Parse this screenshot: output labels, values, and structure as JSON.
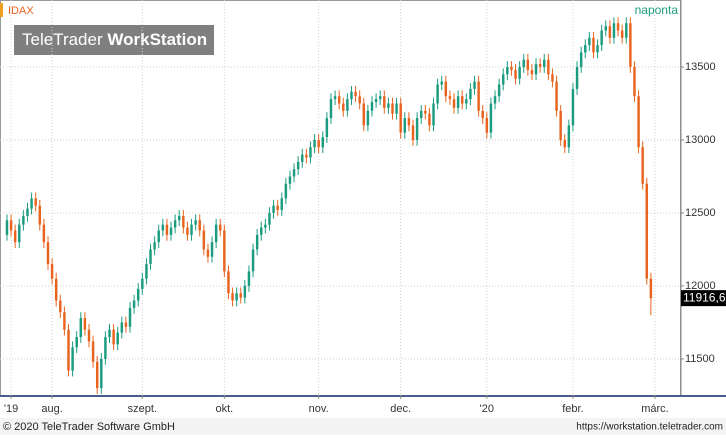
{
  "chart_data": {
    "type": "candlestick",
    "symbol": "IDAX",
    "period": "naponta",
    "watermark_a": "TeleTrader",
    "watermark_b": "WorkStation",
    "footer_left": "© 2020 TeleTrader Software GmbH",
    "footer_right": "https://workstation.teletrader.com",
    "up_color": "#1b9c80",
    "down_color": "#e8641e",
    "grid": true,
    "ylim": [
      11253,
      13959
    ],
    "yticks": [
      11500,
      12000,
      12500,
      13000,
      13500
    ],
    "xlim": [
      -1.7,
      164.1
    ],
    "xticks": [
      {
        "value": 1,
        "label": "'19"
      },
      {
        "value": 11,
        "label": "aug."
      },
      {
        "value": 33,
        "label": "szept."
      },
      {
        "value": 53,
        "label": "okt."
      },
      {
        "value": 76,
        "label": "nov."
      },
      {
        "value": 96,
        "label": "dec."
      },
      {
        "value": 117,
        "label": "'20"
      },
      {
        "value": 138,
        "label": "febr."
      },
      {
        "value": 158,
        "label": "márc."
      }
    ],
    "last_label": "11916,6",
    "open": [
      12350,
      12450,
      12380,
      12300,
      12420,
      12480,
      12530,
      12600,
      12550,
      12420,
      12300,
      12150,
      12050,
      11900,
      11820,
      11700,
      11420,
      11580,
      11650,
      11780,
      11700,
      11620,
      11480,
      11300,
      11500,
      11650,
      11700,
      11600,
      11680,
      11750,
      11720,
      11850,
      11900,
      11980,
      12050,
      12150,
      12250,
      12300,
      12380,
      12420,
      12350,
      12400,
      12450,
      12480,
      12400,
      12350,
      12420,
      12450,
      12380,
      12250,
      12200,
      12300,
      12420,
      12380,
      12100,
      11950,
      11900,
      11950,
      11920,
      12000,
      12100,
      12250,
      12350,
      12400,
      12420,
      12500,
      12550,
      12520,
      12600,
      12700,
      12750,
      12800,
      12850,
      12900,
      12880,
      12950,
      13000,
      12950,
      13020,
      13150,
      13280,
      13300,
      13250,
      13200,
      13280,
      13330,
      13300,
      13250,
      13100,
      13200,
      13260,
      13280,
      13300,
      13220,
      13250,
      13180,
      13250,
      13050,
      13150,
      13100,
      13000,
      13150,
      13200,
      13180,
      13100,
      13250,
      13380,
      13400,
      13300,
      13280,
      13220,
      13300,
      13250,
      13280,
      13350,
      13400,
      13200,
      13150,
      13050,
      13250,
      13300,
      13380,
      13450,
      13500,
      13480,
      13420,
      13500,
      13550,
      13480,
      13450,
      13520,
      13500,
      13550,
      13450,
      13400,
      13200,
      13000,
      12950,
      13100,
      13350,
      13500,
      13600,
      13650,
      13700,
      13600,
      13650,
      13750,
      13780,
      13700,
      13800,
      13750,
      13700,
      13800,
      13500,
      13300,
      12950,
      12700,
      12050
    ],
    "high": [
      12490,
      12490,
      12420,
      12460,
      12520,
      12570,
      12640,
      12640,
      12590,
      12460,
      12340,
      12190,
      12090,
      11940,
      11860,
      11740,
      11620,
      11690,
      11820,
      11820,
      11740,
      11660,
      11520,
      11540,
      11690,
      11740,
      11740,
      11720,
      11790,
      11790,
      11890,
      11940,
      12020,
      12090,
      12190,
      12290,
      12340,
      12420,
      12460,
      12460,
      12440,
      12490,
      12520,
      12520,
      12440,
      12460,
      12490,
      12490,
      12420,
      12290,
      12340,
      12460,
      12460,
      12420,
      12140,
      11990,
      11990,
      11990,
      12040,
      12140,
      12290,
      12390,
      12440,
      12460,
      12540,
      12590,
      12590,
      12640,
      12740,
      12790,
      12840,
      12890,
      12940,
      12940,
      12990,
      13040,
      13040,
      13060,
      13190,
      13320,
      13340,
      13340,
      13290,
      13320,
      13370,
      13370,
      13340,
      13290,
      13240,
      13300,
      13320,
      13340,
      13340,
      13290,
      13290,
      13290,
      13290,
      13190,
      13190,
      13140,
      13190,
      13240,
      13240,
      13220,
      13290,
      13420,
      13440,
      13440,
      13340,
      13320,
      13340,
      13340,
      13320,
      13390,
      13440,
      13440,
      13240,
      13190,
      13290,
      13340,
      13420,
      13490,
      13540,
      13540,
      13520,
      13540,
      13590,
      13590,
      13520,
      13560,
      13560,
      13590,
      13590,
      13490,
      13440,
      13240,
      13040,
      13140,
      13390,
      13540,
      13640,
      13690,
      13740,
      13740,
      13690,
      13790,
      13820,
      13820,
      13840,
      13840,
      13790,
      13840,
      13840,
      13540,
      13340,
      12990,
      12740,
      12090
    ],
    "low": [
      12310,
      12340,
      12260,
      12260,
      12380,
      12440,
      12490,
      12510,
      12380,
      12260,
      12110,
      12010,
      11860,
      11780,
      11660,
      11380,
      11380,
      11540,
      11610,
      11660,
      11580,
      11440,
      11260,
      11260,
      11460,
      11610,
      11560,
      11560,
      11640,
      11680,
      11680,
      11810,
      11860,
      11940,
      12010,
      12110,
      12210,
      12260,
      12340,
      12310,
      12310,
      12360,
      12410,
      12360,
      12310,
      12310,
      12380,
      12340,
      12210,
      12160,
      12160,
      12260,
      12340,
      12060,
      11910,
      11860,
      11860,
      11880,
      11880,
      11960,
      12060,
      12210,
      12310,
      12360,
      12380,
      12460,
      12480,
      12480,
      12560,
      12660,
      12710,
      12760,
      12810,
      12840,
      12840,
      12910,
      12910,
      12910,
      12980,
      13110,
      13240,
      13210,
      13160,
      13160,
      13240,
      13260,
      13210,
      13060,
      13060,
      13160,
      13220,
      13240,
      13180,
      13180,
      13140,
      13140,
      13010,
      13010,
      13060,
      12960,
      12960,
      13110,
      13140,
      13060,
      13060,
      13210,
      13340,
      13260,
      13240,
      13180,
      13180,
      13210,
      13210,
      13240,
      13310,
      13160,
      13110,
      13010,
      13010,
      13210,
      13260,
      13340,
      13410,
      13440,
      13380,
      13380,
      13460,
      13440,
      13410,
      13410,
      13460,
      13460,
      13410,
      13360,
      13160,
      12960,
      12910,
      12910,
      13060,
      13310,
      13460,
      13560,
      13610,
      13560,
      13560,
      13610,
      13710,
      13660,
      13660,
      13710,
      13660,
      13660,
      13460,
      13260,
      12910,
      12660,
      12010,
      11800
    ],
    "close": [
      12450,
      12380,
      12300,
      12420,
      12480,
      12530,
      12600,
      12550,
      12420,
      12300,
      12150,
      12050,
      11900,
      11820,
      11700,
      11420,
      11580,
      11650,
      11780,
      11700,
      11620,
      11480,
      11300,
      11500,
      11650,
      11700,
      11600,
      11680,
      11750,
      11720,
      11850,
      11900,
      11980,
      12050,
      12150,
      12250,
      12300,
      12380,
      12420,
      12350,
      12400,
      12450,
      12480,
      12400,
      12350,
      12420,
      12450,
      12380,
      12250,
      12200,
      12300,
      12420,
      12380,
      12100,
      11950,
      11900,
      11950,
      11920,
      12000,
      12100,
      12250,
      12350,
      12400,
      12420,
      12500,
      12550,
      12520,
      12600,
      12700,
      12750,
      12800,
      12850,
      12900,
      12880,
      12950,
      13000,
      12950,
      13020,
      13150,
      13280,
      13300,
      13250,
      13200,
      13280,
      13330,
      13300,
      13250,
      13100,
      13200,
      13260,
      13280,
      13300,
      13220,
      13250,
      13180,
      13250,
      13050,
      13150,
      13100,
      13000,
      13150,
      13200,
      13180,
      13100,
      13250,
      13380,
      13400,
      13300,
      13280,
      13220,
      13300,
      13250,
      13280,
      13350,
      13400,
      13200,
      13150,
      13050,
      13250,
      13300,
      13380,
      13450,
      13500,
      13480,
      13420,
      13500,
      13550,
      13480,
      13450,
      13520,
      13500,
      13550,
      13450,
      13400,
      13200,
      13000,
      12950,
      13100,
      13350,
      13500,
      13600,
      13650,
      13700,
      13600,
      13650,
      13750,
      13780,
      13700,
      13800,
      13750,
      13700,
      13800,
      13500,
      13300,
      12950,
      12700,
      12050,
      11916.6
    ]
  }
}
